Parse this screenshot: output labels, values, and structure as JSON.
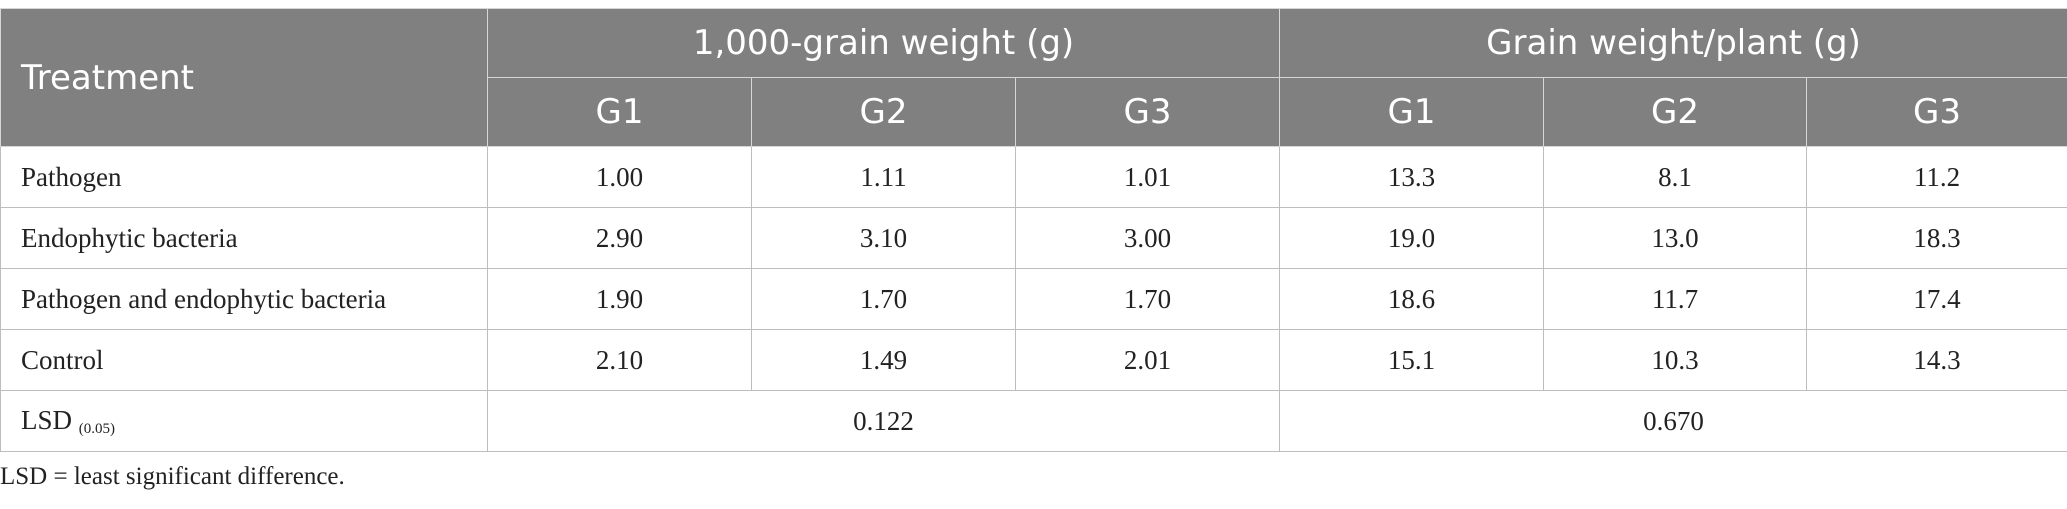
{
  "table": {
    "header": {
      "treatment": "Treatment",
      "group1": "1,000-grain weight (g)",
      "group2": "Grain weight/plant (g)",
      "subcols": [
        "G1",
        "G2",
        "G3",
        "G1",
        "G2",
        "G3"
      ]
    },
    "rows": [
      {
        "label": "Pathogen",
        "values": [
          "1.00",
          "1.11",
          "1.01",
          "13.3",
          "8.1",
          "11.2"
        ]
      },
      {
        "label": "Endophytic bacteria",
        "values": [
          "2.90",
          "3.10",
          "3.00",
          "19.0",
          "13.0",
          "18.3"
        ]
      },
      {
        "label": "Pathogen and endophytic bacteria",
        "values": [
          "1.90",
          "1.70",
          "1.70",
          "18.6",
          "11.7",
          "17.4"
        ]
      },
      {
        "label": "Control",
        "values": [
          "2.10",
          "1.49",
          "2.01",
          "15.1",
          "10.3",
          "14.3"
        ]
      }
    ],
    "lsd": {
      "label": "LSD",
      "subscript": "(0.05)",
      "value1": "0.122",
      "value2": "0.670"
    }
  },
  "footnote": "LSD = least significant difference."
}
